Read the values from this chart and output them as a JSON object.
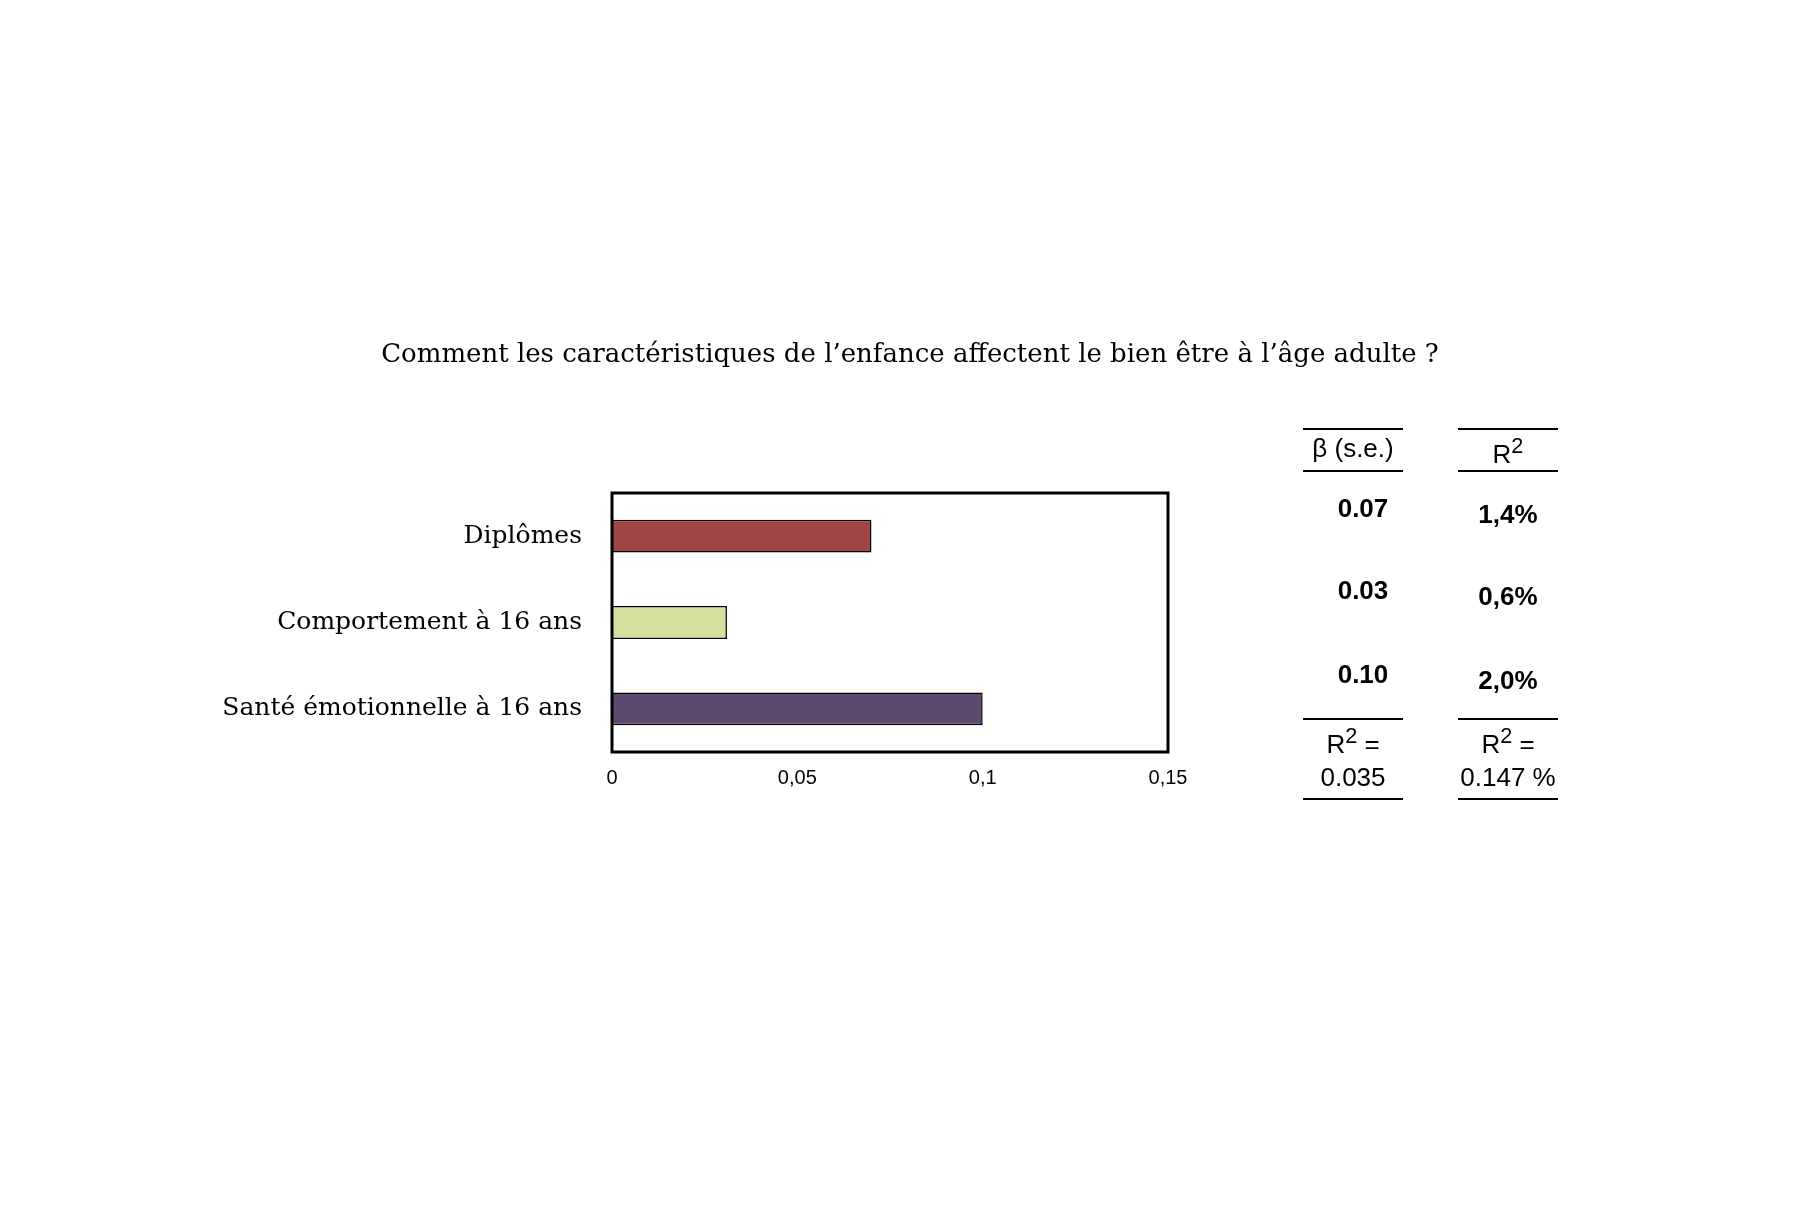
{
  "chart_data": {
    "type": "bar",
    "orientation": "horizontal",
    "title": "Comment les caractéristiques de l’enfance affectent le bien être à l’âge adulte ?",
    "categories": [
      "Diplômes",
      "Comportement à 16 ans",
      "Santé émotionnelle à 16 ans"
    ],
    "values": [
      0.07,
      0.031,
      0.1
    ],
    "colors": [
      "#a04545",
      "#d5e0a0",
      "#5e4a6e"
    ],
    "value_labels": [
      "0.07",
      "0.03",
      "0.10"
    ],
    "xlim": [
      0,
      0.15
    ],
    "xticks": [
      0,
      {
        "value": 0.05,
        "label": "0,05"
      },
      {
        "value": 0.1,
        "label": "0,1"
      },
      {
        "value": 0.15,
        "label": "0,15"
      }
    ],
    "grid": false,
    "annotations": [
      "β  (s.e.)",
      "R$^{2}$",
      "1,4%",
      "0,6%",
      "2,0%",
      "R$^{2}$ =",
      "0.035",
      "R$^{2}$ =",
      "0.147 %"
    ]
  }
}
